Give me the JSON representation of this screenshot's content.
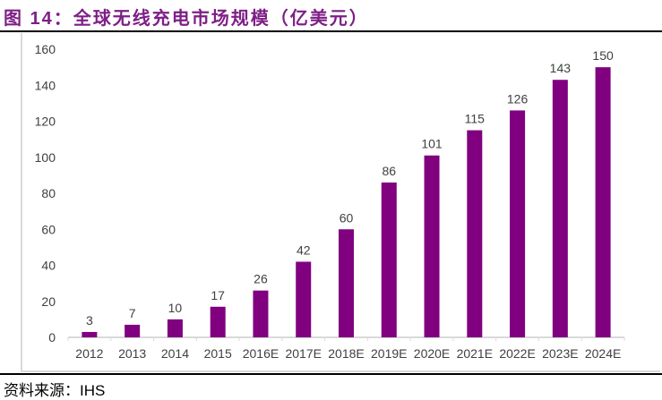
{
  "title": "图 14：全球无线充电市场规模（亿美元）",
  "source": "资料来源：IHS",
  "chart_data": {
    "type": "bar",
    "title": "全球无线充电市场规模（亿美元）",
    "xlabel": "",
    "ylabel": "",
    "categories": [
      "2012",
      "2013",
      "2014",
      "2015",
      "2016E",
      "2017E",
      "2018E",
      "2019E",
      "2020E",
      "2021E",
      "2022E",
      "2023E",
      "2024E"
    ],
    "values": [
      3,
      7,
      10,
      17,
      26,
      42,
      60,
      86,
      101,
      115,
      126,
      143,
      150
    ],
    "ylim": [
      0,
      160
    ],
    "yticks": [
      0,
      20,
      40,
      60,
      80,
      100,
      120,
      140,
      160
    ],
    "grid": false,
    "bar_color": "#800080"
  }
}
